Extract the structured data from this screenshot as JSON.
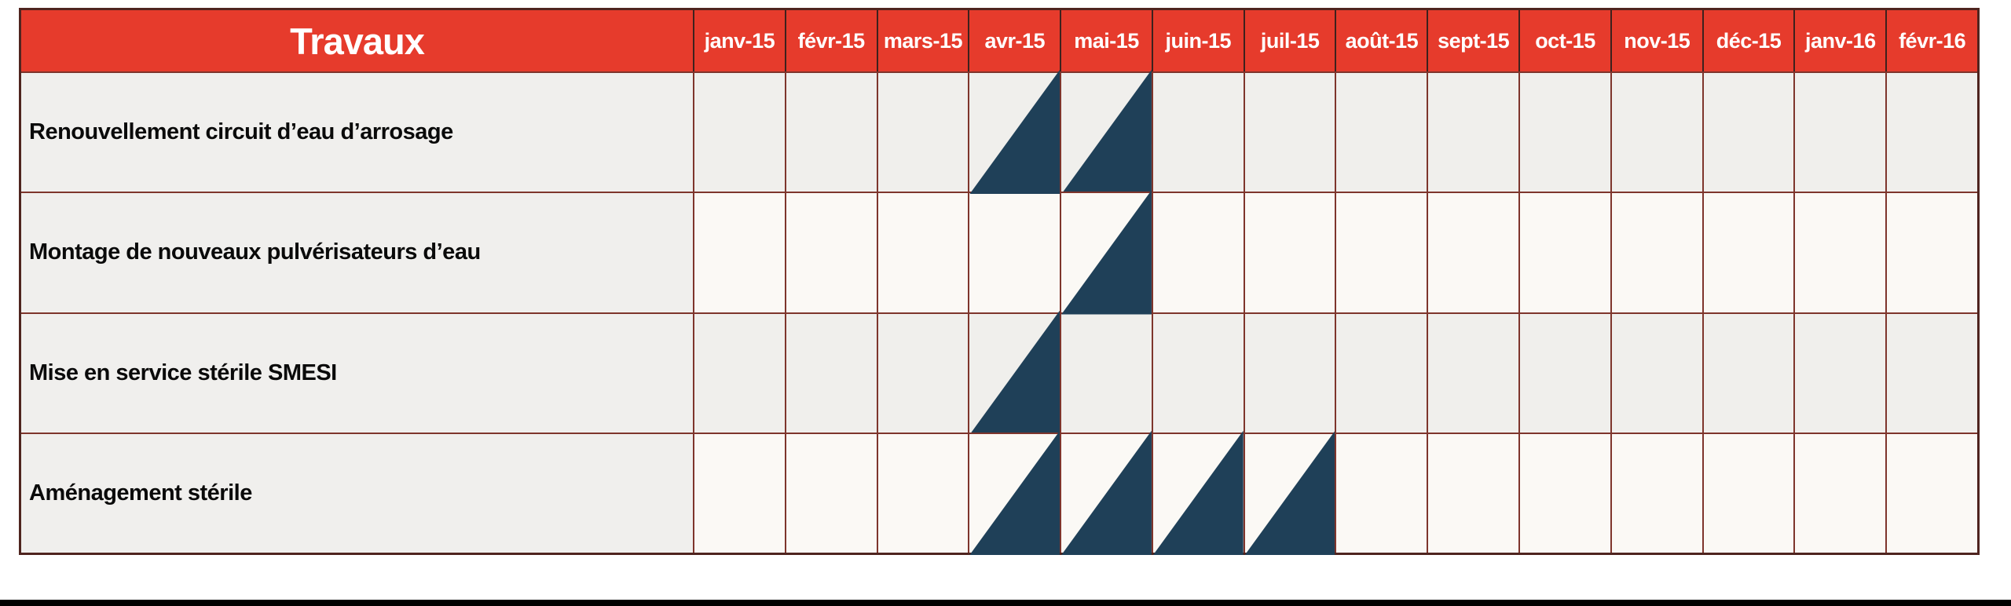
{
  "page": {
    "background": "#ffffff",
    "bottom_bar_color": "#000000"
  },
  "chart_data": {
    "type": "table",
    "subtype": "gantt-schedule",
    "title": "Travaux",
    "columns": [
      "janv-15",
      "févr-15",
      "mars-15",
      "avr-15",
      "mai-15",
      "juin-15",
      "juil-15",
      "août-15",
      "sept-15",
      "oct-15",
      "nov-15",
      "déc-15",
      "janv-16",
      "févr-16"
    ],
    "rows": [
      {
        "label": "Renouvellement circuit d’eau d’arrosage",
        "filled": [
          "avr-15",
          "mai-15"
        ]
      },
      {
        "label": "Montage de nouveaux pulvérisateurs d’eau",
        "filled": [
          "mai-15"
        ]
      },
      {
        "label": "Mise en service stérile SMESI",
        "filled": [
          "avr-15"
        ]
      },
      {
        "label": "Aménagement stérile",
        "filled": [
          "avr-15",
          "mai-15",
          "juin-15",
          "juil-15"
        ]
      }
    ],
    "marker_shape": "right-triangle-bottom-right",
    "legend_position": "none",
    "grid": "on",
    "colors": {
      "header_bg": "#e63b2c",
      "header_text": "#ffffff",
      "triangle": "#1f4058",
      "grid_line": "#7e352c",
      "header_separator": "#3d211d",
      "outer_border": "#4f241f",
      "row_bg_odd": "#f0efec",
      "row_bg_even": "#fbf9f5",
      "label_column_bg": "#f0efed",
      "task_text": "#0a0a0a"
    }
  }
}
